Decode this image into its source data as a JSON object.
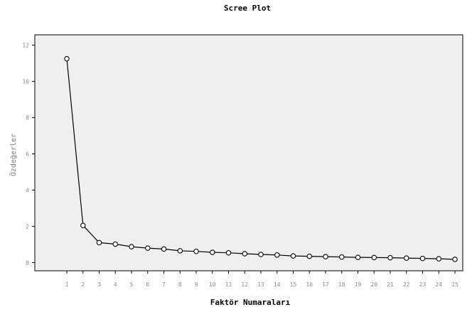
{
  "chart_data": {
    "type": "line",
    "title": "Scree Plot",
    "xlabel": "Faktör Numaraları",
    "ylabel": "Özdeğerler",
    "x": [
      1,
      2,
      3,
      4,
      5,
      6,
      7,
      8,
      9,
      10,
      11,
      12,
      13,
      14,
      15,
      16,
      17,
      18,
      19,
      20,
      21,
      22,
      23,
      24,
      25
    ],
    "series": [
      {
        "values": [
          11.25,
          2.05,
          1.1,
          1.02,
          0.88,
          0.8,
          0.75,
          0.65,
          0.62,
          0.57,
          0.54,
          0.49,
          0.45,
          0.42,
          0.37,
          0.35,
          0.33,
          0.31,
          0.29,
          0.28,
          0.27,
          0.25,
          0.23,
          0.21,
          0.18
        ]
      }
    ],
    "ylim": [
      0,
      12
    ],
    "yticks": [
      0,
      2,
      4,
      6,
      8,
      10,
      12
    ],
    "xticks": [
      1,
      2,
      3,
      4,
      5,
      6,
      7,
      8,
      9,
      10,
      11,
      12,
      13,
      14,
      15,
      16,
      17,
      18,
      19,
      20,
      21,
      22,
      23,
      24,
      25
    ],
    "marker": "circle",
    "grid": false,
    "colors": {
      "plot_background": "#efefef",
      "line": "#000000",
      "marker_fill": "#ffffff",
      "frame": "#000000"
    }
  }
}
